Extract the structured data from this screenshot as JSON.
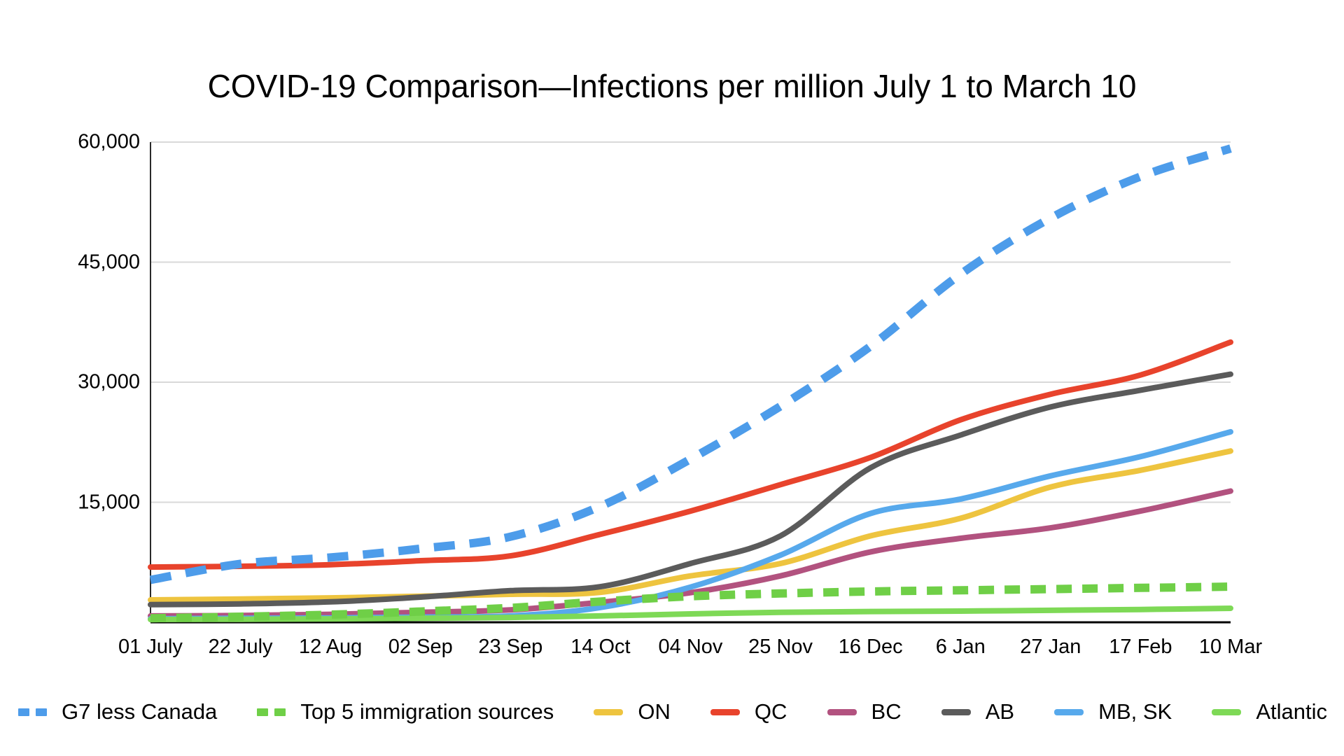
{
  "chart_data": {
    "type": "line",
    "title": "COVID-19 Comparison—Infections per million July 1 to March 10",
    "xlabel": "",
    "ylabel": "",
    "ylim": [
      0,
      60000
    ],
    "y_ticks": [
      {
        "value": 15000,
        "label": "15,000"
      },
      {
        "value": 30000,
        "label": "30,000"
      },
      {
        "value": 45000,
        "label": "45,000"
      },
      {
        "value": 60000,
        "label": "60,000"
      }
    ],
    "grid": "horizontal",
    "legend_position": "bottom",
    "background": "#ffffff",
    "gridline_color": "#d9d9d9",
    "axis_color": "#000000",
    "categories": [
      "01 July",
      "22 July",
      "12 Aug",
      "02 Sep",
      "23 Sep",
      "14 Oct",
      "04 Nov",
      "25 Nov",
      "16 Dec",
      "6 Jan",
      "27 Jan",
      "17 Feb",
      "10 Mar"
    ],
    "series": [
      {
        "name": "G7 less Canada",
        "color": "#4d9cea",
        "style": "dashed",
        "values": [
          5300,
          7300,
          8100,
          9200,
          10700,
          14500,
          20400,
          27000,
          34500,
          43500,
          50500,
          55700,
          59200
        ]
      },
      {
        "name": "Top 5 immigration sources",
        "color": "#6fcf47",
        "style": "dashed",
        "values": [
          500,
          700,
          950,
          1350,
          1800,
          2600,
          3250,
          3600,
          3850,
          4000,
          4150,
          4300,
          4450
        ]
      },
      {
        "name": "ON",
        "color": "#eec43f",
        "style": "solid",
        "values": [
          2800,
          2900,
          3050,
          3250,
          3500,
          3750,
          5800,
          7350,
          10800,
          13000,
          16900,
          19000,
          21400
        ]
      },
      {
        "name": "QC",
        "color": "#e8432c",
        "style": "solid",
        "values": [
          6900,
          7000,
          7200,
          7700,
          8300,
          11000,
          13900,
          17200,
          20600,
          25300,
          28500,
          30900,
          35000
        ]
      },
      {
        "name": "BC",
        "color": "#b2527f",
        "style": "solid",
        "values": [
          800,
          850,
          1000,
          1250,
          1550,
          2500,
          3700,
          5800,
          8800,
          10500,
          11800,
          13900,
          16400
        ]
      },
      {
        "name": "AB",
        "color": "#5b5b5b",
        "style": "solid",
        "values": [
          2200,
          2300,
          2550,
          3150,
          3950,
          4450,
          7350,
          10800,
          19300,
          23400,
          26900,
          29000,
          31000
        ]
      },
      {
        "name": "MB, SK",
        "color": "#57a9ec",
        "style": "solid",
        "values": [
          450,
          500,
          550,
          650,
          800,
          1850,
          4400,
          8400,
          13600,
          15400,
          18300,
          20700,
          23800
        ]
      },
      {
        "name": "Atlantic",
        "color": "#7ed956",
        "style": "solid",
        "values": [
          350,
          380,
          430,
          500,
          600,
          800,
          1050,
          1250,
          1350,
          1400,
          1500,
          1600,
          1750
        ]
      }
    ]
  }
}
